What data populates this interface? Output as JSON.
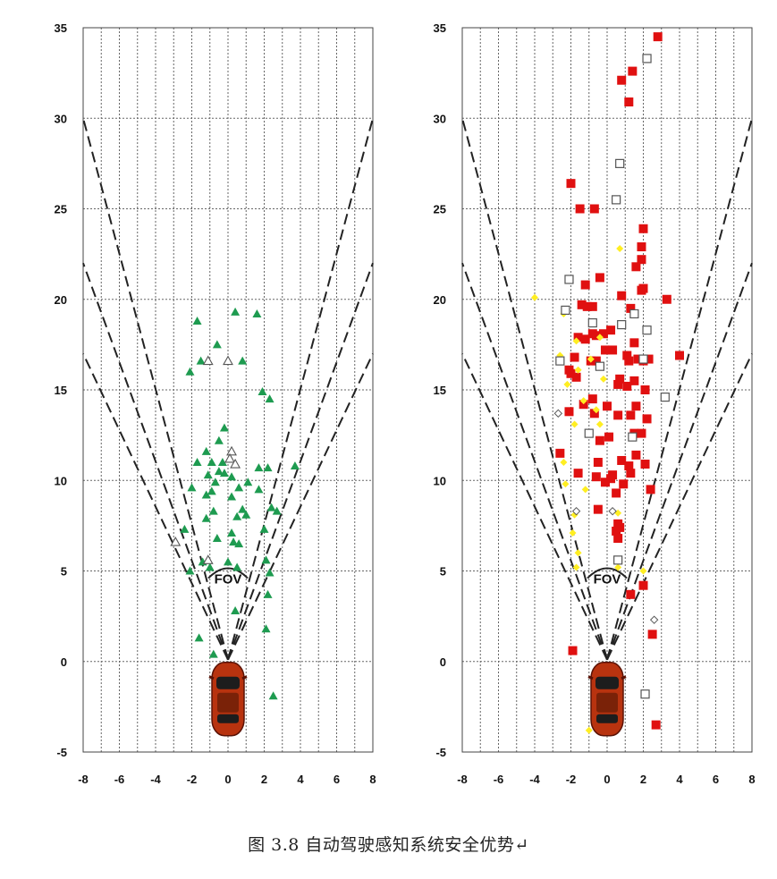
{
  "caption": "图 3.8    自动驾驶感知系统安全优势↵",
  "fov_label": "FOV",
  "colors": {
    "green": "#1e9b50",
    "red": "#e01010",
    "yellow": "#ffee22",
    "hollow": "#555555",
    "car": "#b8330f"
  },
  "chart_data": [
    {
      "type": "scatter",
      "title": "",
      "xlabel": "",
      "ylabel": "",
      "xlim": [
        -8,
        8
      ],
      "ylim": [
        -5,
        35
      ],
      "x_ticks": [
        -8,
        -6,
        -4,
        -2,
        0,
        2,
        4,
        6,
        8
      ],
      "y_ticks": [
        35,
        30,
        25,
        20,
        15,
        10,
        5,
        0,
        -5
      ],
      "grid": true,
      "fov_cone_tips": [
        [
          -8,
          30
        ],
        [
          8,
          30
        ],
        [
          -8,
          22
        ],
        [
          8,
          22
        ],
        [
          -8,
          17
        ],
        [
          8,
          17
        ]
      ],
      "series": [
        {
          "marker": "filled-triangle",
          "color": "#1e9b50",
          "points": [
            [
              -1.7,
              18.8
            ],
            [
              0.4,
              19.3
            ],
            [
              1.6,
              19.2
            ],
            [
              -0.6,
              17.5
            ],
            [
              -1.5,
              16.6
            ],
            [
              0.8,
              16.6
            ],
            [
              -2.1,
              16.0
            ],
            [
              1.9,
              14.9
            ],
            [
              2.3,
              14.5
            ],
            [
              -0.2,
              12.9
            ],
            [
              -0.5,
              12.2
            ],
            [
              -1.2,
              11.6
            ],
            [
              -0.3,
              11.0
            ],
            [
              -1.7,
              11.0
            ],
            [
              -0.9,
              11.0
            ],
            [
              1.7,
              10.7
            ],
            [
              2.2,
              10.7
            ],
            [
              3.7,
              10.8
            ],
            [
              -1.1,
              10.3
            ],
            [
              -0.5,
              10.5
            ],
            [
              -0.2,
              10.4
            ],
            [
              0.2,
              10.2
            ],
            [
              1.1,
              9.9
            ],
            [
              -2.0,
              9.6
            ],
            [
              -0.7,
              9.9
            ],
            [
              -0.9,
              9.4
            ],
            [
              0.6,
              9.6
            ],
            [
              1.7,
              9.5
            ],
            [
              -1.2,
              9.2
            ],
            [
              0.2,
              9.1
            ],
            [
              2.4,
              8.5
            ],
            [
              2.7,
              8.3
            ],
            [
              0.8,
              8.4
            ],
            [
              -0.8,
              8.3
            ],
            [
              1.0,
              8.1
            ],
            [
              0.5,
              8.0
            ],
            [
              -1.2,
              7.9
            ],
            [
              2.0,
              7.3
            ],
            [
              0.2,
              7.1
            ],
            [
              -2.4,
              7.3
            ],
            [
              -0.6,
              6.8
            ],
            [
              0.3,
              6.6
            ],
            [
              0.6,
              6.5
            ],
            [
              -1.4,
              5.5
            ],
            [
              -1.0,
              5.2
            ],
            [
              2.1,
              5.6
            ],
            [
              2.3,
              4.9
            ],
            [
              -2.1,
              5.0
            ],
            [
              0.5,
              5.2
            ],
            [
              0.0,
              5.5
            ],
            [
              2.2,
              3.7
            ],
            [
              0.4,
              2.8
            ],
            [
              2.1,
              1.8
            ],
            [
              -1.6,
              1.3
            ],
            [
              -0.8,
              0.4
            ],
            [
              2.5,
              -1.9
            ]
          ]
        },
        {
          "marker": "hollow-triangle",
          "color": "#555555",
          "points": [
            [
              -1.1,
              16.6
            ],
            [
              0.0,
              16.6
            ],
            [
              0.2,
              11.6
            ],
            [
              0.1,
              11.2
            ],
            [
              0.4,
              10.9
            ],
            [
              -2.9,
              6.6
            ],
            [
              -1.1,
              5.6
            ]
          ]
        },
        {
          "marker": "filled-square",
          "color": "#e01010",
          "points": [
            [
              2.8,
              34.5
            ],
            [
              1.4,
              32.6
            ],
            [
              0.8,
              32.1
            ],
            [
              1.2,
              30.9
            ],
            [
              -2.0,
              26.4
            ],
            [
              -1.5,
              25.0
            ],
            [
              -0.7,
              25.0
            ],
            [
              2.0,
              23.9
            ],
            [
              1.9,
              22.9
            ],
            [
              -0.4,
              21.2
            ],
            [
              -1.2,
              20.8
            ],
            [
              -1.4,
              19.7
            ],
            [
              -1.1,
              19.6
            ],
            [
              -0.8,
              19.6
            ],
            [
              1.6,
              21.8
            ],
            [
              1.9,
              22.2
            ],
            [
              1.9,
              20.5
            ],
            [
              2.0,
              20.6
            ],
            [
              3.3,
              20.0
            ],
            [
              0.8,
              20.2
            ],
            [
              1.3,
              19.5
            ],
            [
              0.2,
              18.3
            ],
            [
              -0.2,
              18.1
            ],
            [
              -0.6,
              18.0
            ],
            [
              -0.8,
              18.1
            ],
            [
              -1.2,
              17.8
            ],
            [
              -1.6,
              17.9
            ],
            [
              1.5,
              17.6
            ],
            [
              -0.1,
              17.2
            ],
            [
              0.3,
              17.2
            ],
            [
              1.1,
              16.9
            ],
            [
              -1.8,
              16.8
            ],
            [
              -0.9,
              16.6
            ],
            [
              -0.6,
              16.6
            ],
            [
              1.2,
              16.6
            ],
            [
              1.7,
              16.7
            ],
            [
              2.0,
              16.6
            ],
            [
              2.3,
              16.7
            ],
            [
              4.0,
              16.9
            ],
            [
              -2.1,
              16.1
            ],
            [
              -2.0,
              15.9
            ],
            [
              -1.7,
              15.7
            ],
            [
              0.7,
              15.6
            ],
            [
              1.5,
              15.5
            ],
            [
              1.1,
              15.2
            ],
            [
              0.6,
              15.3
            ],
            [
              2.1,
              15.0
            ],
            [
              -0.8,
              14.5
            ],
            [
              -1.3,
              14.2
            ],
            [
              0.0,
              14.1
            ],
            [
              1.6,
              14.1
            ],
            [
              -0.7,
              13.7
            ],
            [
              -2.1,
              13.8
            ],
            [
              1.3,
              13.6
            ],
            [
              0.6,
              13.6
            ],
            [
              2.2,
              13.4
            ],
            [
              1.5,
              12.6
            ],
            [
              0.1,
              12.4
            ],
            [
              1.9,
              12.6
            ],
            [
              -0.4,
              12.2
            ],
            [
              -2.6,
              11.5
            ],
            [
              1.6,
              11.4
            ],
            [
              0.8,
              11.1
            ],
            [
              -0.5,
              11.0
            ],
            [
              1.2,
              10.8
            ],
            [
              2.1,
              10.9
            ],
            [
              1.3,
              10.4
            ],
            [
              0.3,
              10.3
            ],
            [
              0.2,
              10.1
            ],
            [
              -1.6,
              10.4
            ],
            [
              -0.6,
              10.2
            ],
            [
              0.9,
              9.8
            ],
            [
              -0.1,
              9.9
            ],
            [
              2.4,
              9.5
            ],
            [
              0.5,
              9.3
            ],
            [
              -0.5,
              8.4
            ],
            [
              0.6,
              7.6
            ],
            [
              0.7,
              7.4
            ],
            [
              0.5,
              7.2
            ],
            [
              0.6,
              6.8
            ],
            [
              -1.9,
              0.6
            ],
            [
              1.3,
              3.7
            ],
            [
              2.0,
              4.2
            ],
            [
              2.5,
              1.5
            ],
            [
              2.7,
              -3.5
            ]
          ]
        },
        {
          "marker": "filled-diamond",
          "color": "#ffee22",
          "points": [
            [
              0.7,
              22.8
            ],
            [
              -4.0,
              20.1
            ],
            [
              -2.4,
              19.2
            ],
            [
              -1.7,
              17.7
            ],
            [
              -0.4,
              17.9
            ],
            [
              -2.6,
              16.9
            ],
            [
              -0.9,
              16.7
            ],
            [
              -1.6,
              16.1
            ],
            [
              -0.2,
              15.6
            ],
            [
              -2.2,
              15.3
            ],
            [
              -1.3,
              14.4
            ],
            [
              -0.6,
              13.9
            ],
            [
              -1.8,
              13.1
            ],
            [
              -0.4,
              13.1
            ],
            [
              -2.4,
              11.0
            ],
            [
              -2.3,
              9.8
            ],
            [
              -1.2,
              9.5
            ],
            [
              -1.8,
              8.1
            ],
            [
              0.6,
              8.2
            ],
            [
              -1.9,
              7.1
            ],
            [
              -1.6,
              6.0
            ],
            [
              0.6,
              5.2
            ],
            [
              -1.7,
              5.2
            ],
            [
              2.0,
              5.0
            ],
            [
              -1.0,
              -3.8
            ]
          ]
        },
        {
          "marker": "hollow-square",
          "color": "#555555",
          "points": [
            [
              2.2,
              33.3
            ],
            [
              0.7,
              27.5
            ],
            [
              0.5,
              25.5
            ],
            [
              -2.1,
              21.1
            ],
            [
              -2.3,
              19.4
            ],
            [
              -0.8,
              18.7
            ],
            [
              1.5,
              19.2
            ],
            [
              0.8,
              18.6
            ],
            [
              2.2,
              18.3
            ],
            [
              -2.6,
              16.6
            ],
            [
              -0.4,
              16.3
            ],
            [
              2.0,
              16.7
            ],
            [
              3.2,
              14.6
            ],
            [
              -1.0,
              12.6
            ],
            [
              1.4,
              12.4
            ],
            [
              0.6,
              5.6
            ],
            [
              2.1,
              -1.8
            ]
          ]
        },
        {
          "marker": "hollow-diamond",
          "color": "#555555",
          "points": [
            [
              -2.7,
              13.7
            ],
            [
              -1.7,
              8.3
            ],
            [
              0.3,
              8.3
            ],
            [
              2.6,
              2.3
            ]
          ]
        }
      ]
    }
  ]
}
